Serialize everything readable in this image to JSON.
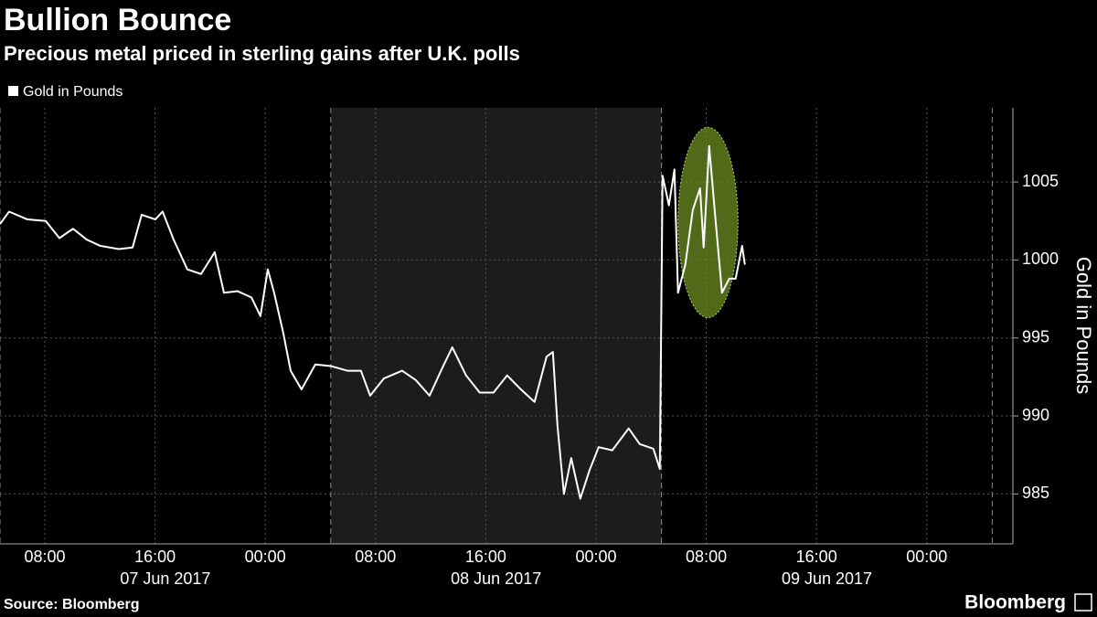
{
  "chart_data": {
    "type": "line",
    "title": "Bullion Bounce",
    "subtitle": "Precious metal priced in sterling gains after U.K. polls",
    "y_label": "Gold in Pounds",
    "source": "Source: Bloomberg",
    "brand": "Bloomberg",
    "x": [
      4.75,
      5.41,
      6.74,
      8.07,
      9.06,
      10.05,
      11.05,
      12.04,
      13.37,
      14.37,
      15.03,
      16.02,
      16.55,
      17.35,
      18.34,
      19.34,
      20.33,
      21.0,
      21.99,
      22.99,
      23.65,
      24.18,
      24.64,
      25.31,
      25.84,
      26.63,
      27.63,
      28.76,
      29.95,
      30.94,
      31.61,
      32.6,
      33.93,
      34.92,
      35.92,
      36.91,
      37.57,
      38.57,
      39.56,
      40.56,
      41.55,
      42.55,
      43.54,
      44.41,
      44.87,
      45.2,
      45.67,
      46.2,
      46.86,
      47.52,
      48.19,
      49.18,
      50.37,
      51.17,
      52.16,
      52.63,
      52.83,
      53.29,
      53.69,
      53.95,
      54.48,
      55.02,
      55.55,
      55.81,
      56.21,
      56.61,
      57.14,
      57.67,
      58.13,
      58.6,
      58.8
    ],
    "series": [
      {
        "name": "Gold in Pounds",
        "color": "#ffffff",
        "values": [
          1002.3,
          1003.1,
          1002.6,
          1002.5,
          1001.4,
          1002.0,
          1001.3,
          1000.9,
          1000.7,
          1000.8,
          1002.9,
          1002.6,
          1003.1,
          1001.3,
          999.4,
          999.1,
          1000.5,
          997.9,
          998.0,
          997.6,
          996.4,
          999.4,
          997.9,
          995.3,
          992.9,
          991.7,
          993.3,
          993.2,
          992.9,
          992.9,
          991.3,
          992.4,
          992.9,
          992.3,
          991.3,
          993.2,
          994.4,
          992.6,
          991.5,
          991.5,
          992.6,
          991.7,
          990.9,
          993.8,
          994.1,
          989.4,
          985.0,
          987.3,
          984.7,
          986.5,
          988.0,
          987.8,
          989.2,
          988.2,
          987.9,
          986.6,
          1005.4,
          1003.5,
          1005.8,
          997.9,
          999.7,
          1003.2,
          1004.6,
          1000.8,
          1007.3,
          1003.2,
          997.9,
          998.8,
          998.8,
          1000.9,
          999.7
        ]
      }
    ],
    "xlim": [
      4.75,
      78.25
    ],
    "xticks": [
      {
        "value": 8,
        "label": "08:00"
      },
      {
        "value": 16,
        "label": "16:00"
      },
      {
        "value": 24,
        "label": "00:00"
      },
      {
        "value": 32,
        "label": "08:00"
      },
      {
        "value": 40,
        "label": "16:00"
      },
      {
        "value": 48,
        "label": "00:00"
      },
      {
        "value": 56,
        "label": "08:00"
      },
      {
        "value": 64,
        "label": "16:00"
      },
      {
        "value": 72,
        "label": "00:00"
      }
    ],
    "day_labels": [
      {
        "value": 16.75,
        "label": "07 Jun 2017"
      },
      {
        "value": 40.75,
        "label": "08 Jun 2017"
      },
      {
        "value": 64.75,
        "label": "09 Jun 2017"
      }
    ],
    "sessions": [
      4.75,
      28.75,
      52.75,
      76.75
    ],
    "shaded": [
      28.75,
      52.75
    ],
    "highlight": {
      "x": [
        53.95,
        58.3
      ],
      "y": [
        996.3,
        1008.5
      ],
      "color": "#6b8e23"
    },
    "ylim": [
      981.8,
      1009.75
    ],
    "yticks": [
      985,
      990,
      995,
      1000,
      1005
    ],
    "grid": true
  }
}
